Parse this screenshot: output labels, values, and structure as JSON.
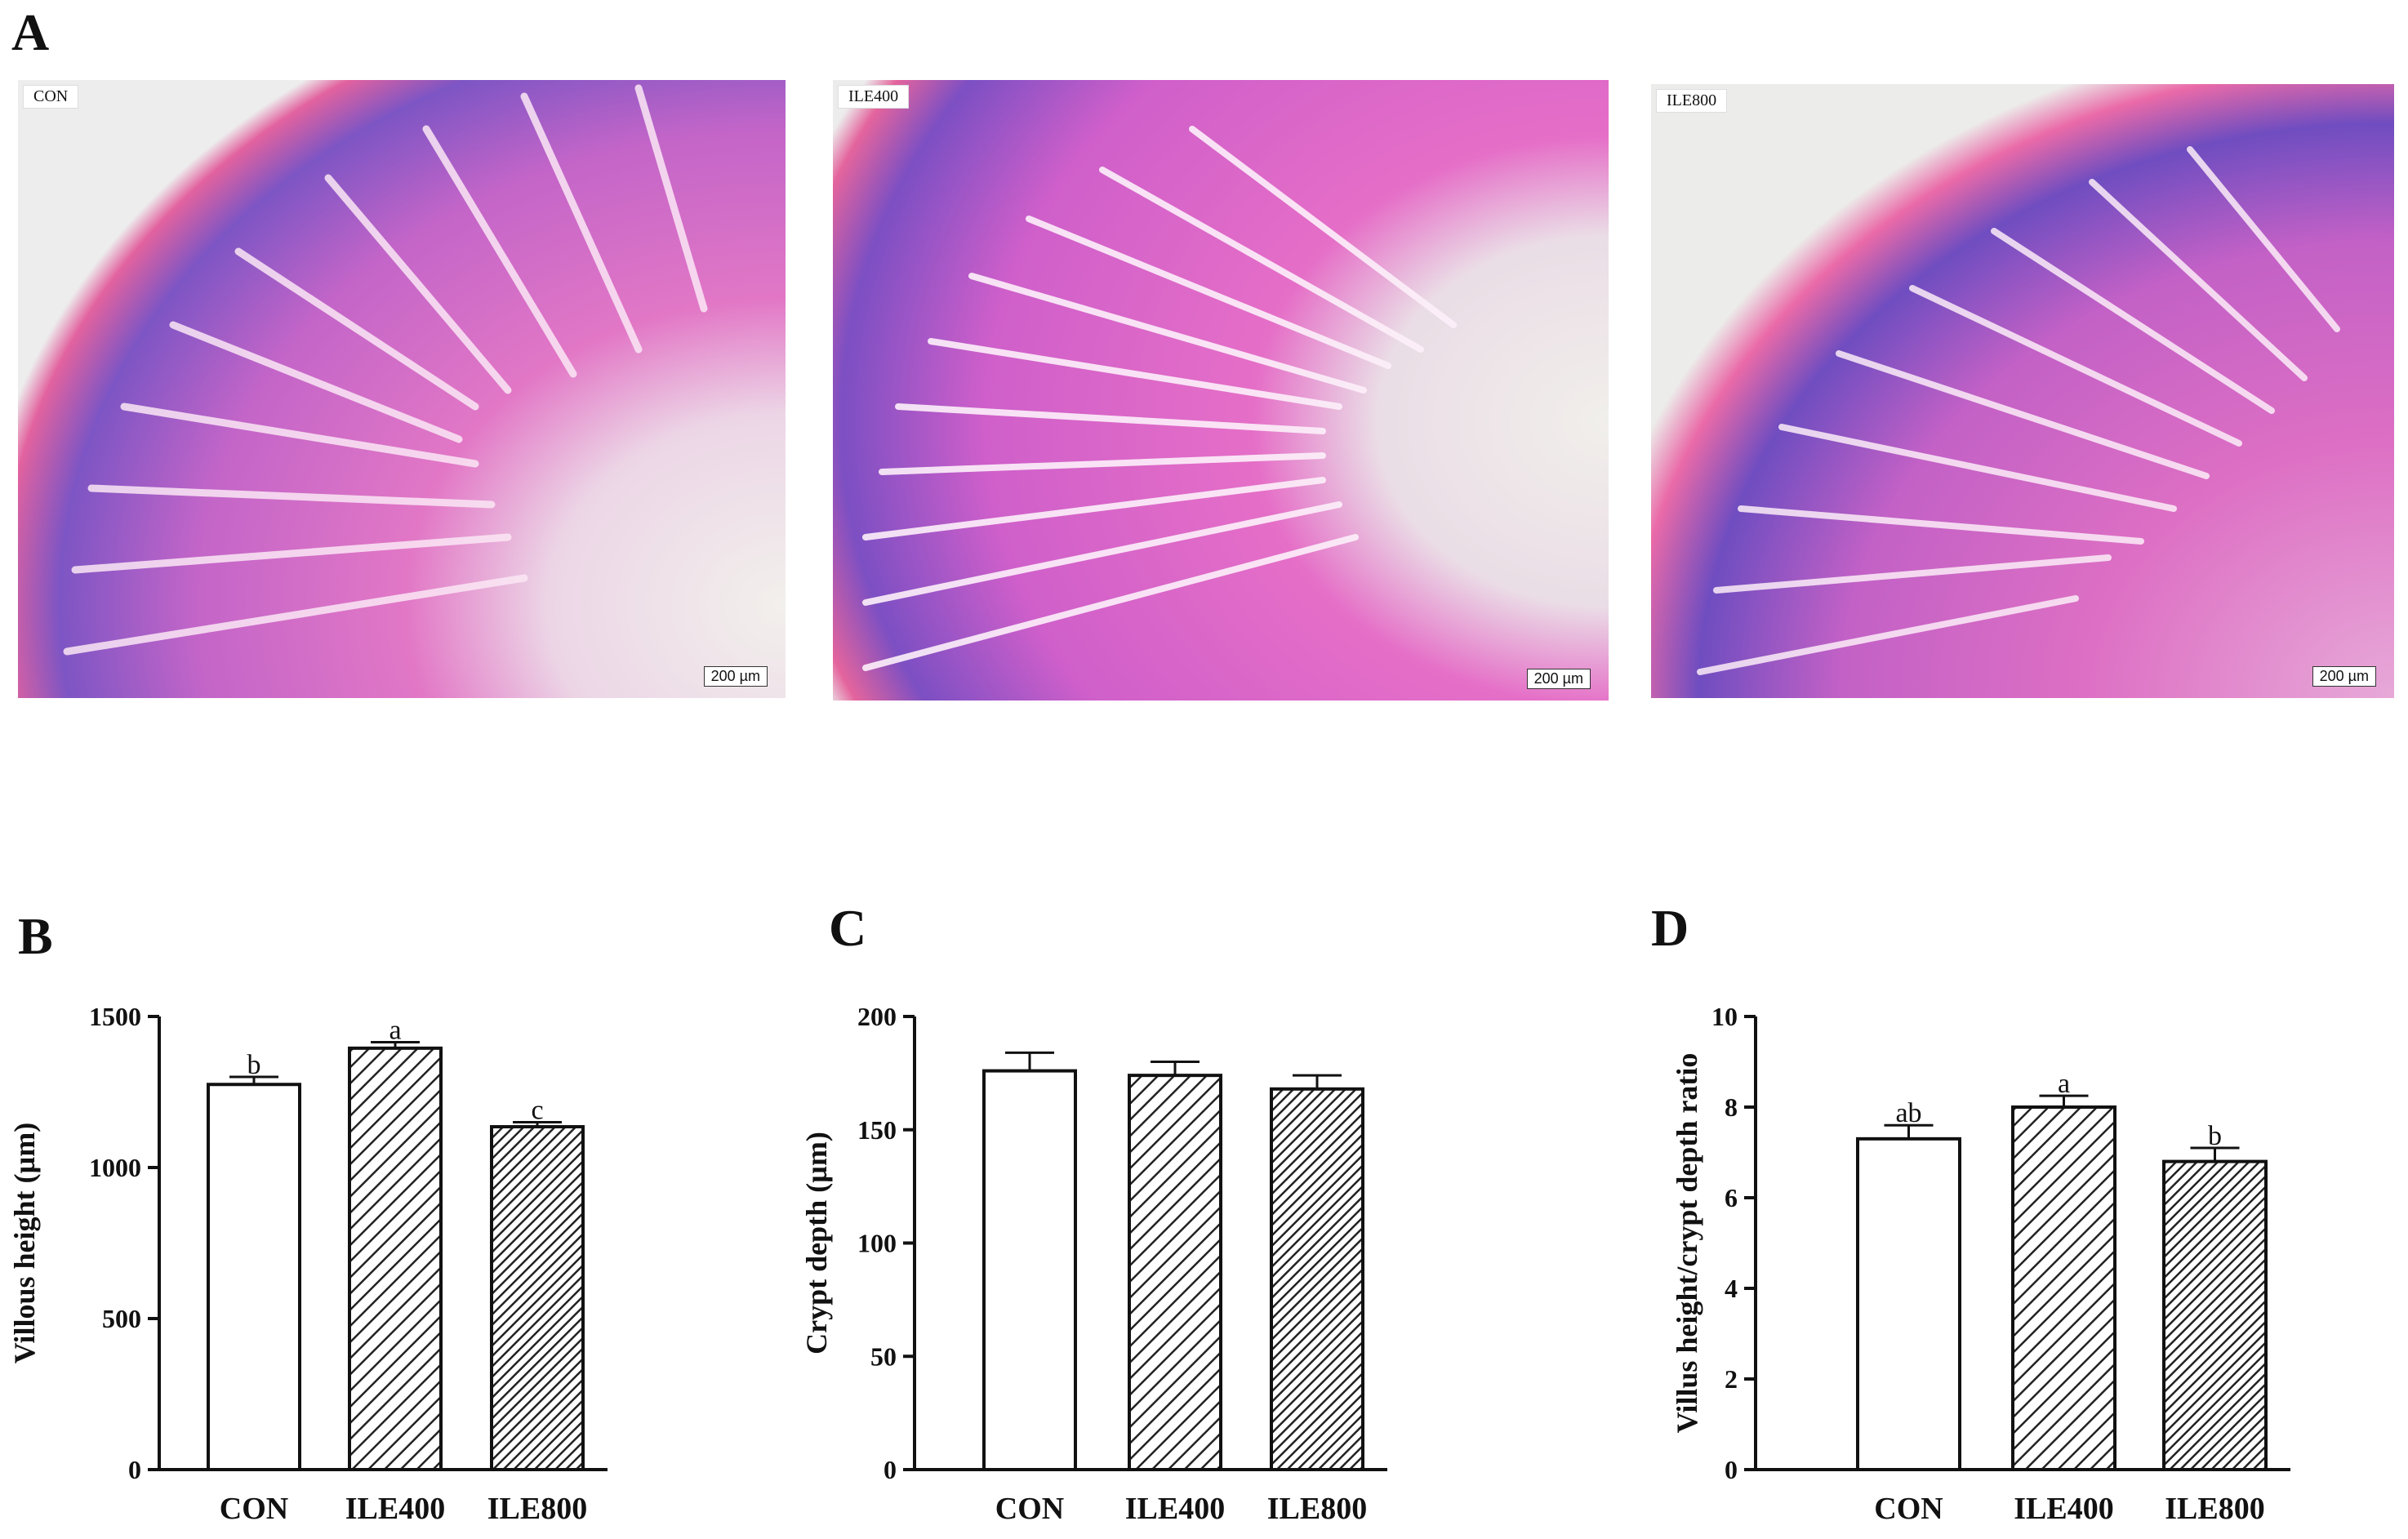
{
  "panels": {
    "a": "A",
    "b": "B",
    "c": "C",
    "d": "D"
  },
  "micrographs": [
    {
      "label": "CON",
      "scale": "200 µm"
    },
    {
      "label": "ILE400",
      "scale": "200 µm"
    },
    {
      "label": "ILE800",
      "scale": "200 µm"
    }
  ],
  "colors": {
    "bar_edge": "#111111",
    "bar_fill_con": "#ffffff",
    "bar_fill_ile400": "#bdbdbd",
    "bar_fill_ile800": "#8a8a8a",
    "tissue_pink": "#e070c0",
    "tissue_purple": "#7a4fc0",
    "background_tissue": "#f0eeea"
  },
  "chart_data": [
    {
      "type": "bar",
      "panel": "B",
      "categories": [
        "CON",
        "ILE400",
        "ILE800"
      ],
      "values": [
        1275,
        1395,
        1135
      ],
      "errors": [
        25,
        20,
        15
      ],
      "significance": [
        "b",
        "a",
        "c"
      ],
      "patterns": [
        "none",
        "hatch-sparse",
        "hatch-dense"
      ],
      "ylabel": "Villous height (µm)",
      "ylim": [
        0,
        1500
      ],
      "yticks": [
        0,
        500,
        1000,
        1500
      ]
    },
    {
      "type": "bar",
      "panel": "C",
      "categories": [
        "CON",
        "ILE400",
        "ILE800"
      ],
      "values": [
        176,
        174,
        168
      ],
      "errors": [
        8,
        6,
        6
      ],
      "significance": [
        "",
        "",
        ""
      ],
      "patterns": [
        "none",
        "hatch-sparse",
        "hatch-dense"
      ],
      "ylabel": "Crypt depth (µm)",
      "ylim": [
        0,
        200
      ],
      "yticks": [
        0,
        50,
        100,
        150,
        200
      ]
    },
    {
      "type": "bar",
      "panel": "D",
      "categories": [
        "CON",
        "ILE400",
        "ILE800"
      ],
      "values": [
        7.3,
        8.0,
        6.8
      ],
      "errors": [
        0.3,
        0.25,
        0.3
      ],
      "significance": [
        "ab",
        "a",
        "b"
      ],
      "patterns": [
        "none",
        "hatch-sparse",
        "hatch-dense"
      ],
      "ylabel": "Villus height/crypt depth ratio",
      "ylim": [
        0,
        10
      ],
      "yticks": [
        0,
        2,
        4,
        6,
        8,
        10
      ]
    }
  ]
}
